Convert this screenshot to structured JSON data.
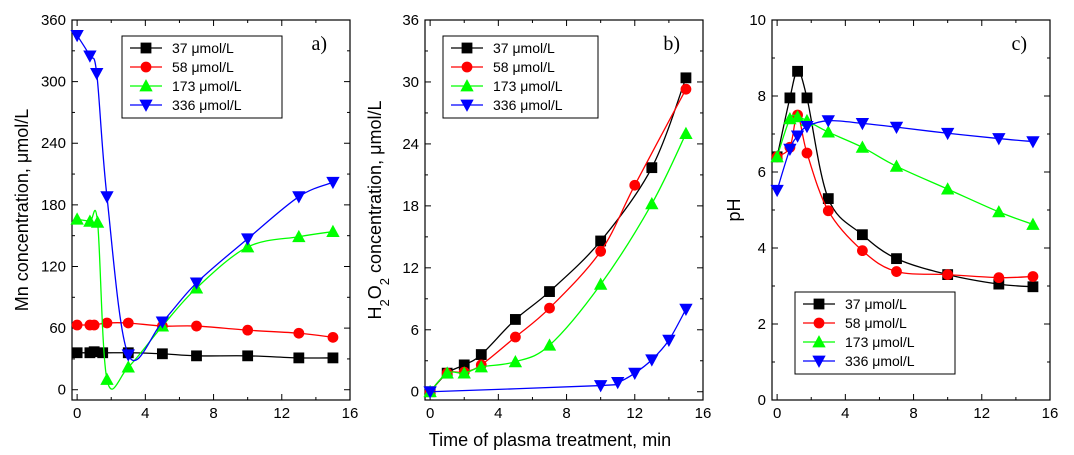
{
  "shared_xlabel": "Time of plasma treatment, min",
  "chart_data": [
    {
      "type": "line",
      "panel_label": "a)",
      "ylabel": "Mn concentration, μmol/L",
      "xlim": [
        -0.3,
        16
      ],
      "ylim": [
        -10,
        360
      ],
      "xticks": [
        0,
        4,
        8,
        12,
        16
      ],
      "yticks": [
        0,
        60,
        120,
        180,
        240,
        300,
        360
      ],
      "legend_position": "top-center",
      "series": [
        {
          "name": "37 μmol/L",
          "color": "#000000",
          "marker": "square",
          "x": [
            0,
            0.75,
            1,
            1.5,
            3,
            5,
            7,
            10,
            13,
            15
          ],
          "y": [
            36,
            36,
            37,
            36,
            36,
            35,
            33,
            33,
            31,
            31
          ]
        },
        {
          "name": "58 μmol/L",
          "color": "#ff0000",
          "marker": "circle",
          "x": [
            0,
            0.75,
            1,
            1.75,
            3,
            5,
            7,
            10,
            13,
            15
          ],
          "y": [
            63,
            63,
            63,
            65,
            65,
            62,
            62,
            58,
            55,
            51
          ]
        },
        {
          "name": "173 μmol/L",
          "color": "#00ff00",
          "marker": "triangle-up",
          "x": [
            0,
            0.75,
            1.2,
            1.75,
            3,
            5,
            7,
            10,
            13,
            15
          ],
          "y": [
            166,
            164,
            163,
            10,
            22,
            62,
            99,
            139,
            149,
            154
          ]
        },
        {
          "name": "336 μmol/L",
          "color": "#0000ff",
          "marker": "triangle-down",
          "x": [
            0,
            0.75,
            1.15,
            1.75,
            3,
            5,
            7,
            10,
            13,
            15
          ],
          "y": [
            345,
            325,
            308,
            188,
            34,
            66,
            104,
            147,
            188,
            202
          ]
        }
      ]
    },
    {
      "type": "line",
      "panel_label": "b)",
      "ylabel_main": "H",
      "ylabel_sub1": "2",
      "ylabel_mid": "O",
      "ylabel_sub2": "2",
      "ylabel_rest": " concentration, μmol/L",
      "xlim": [
        -0.3,
        16
      ],
      "ylim": [
        -0.8,
        36
      ],
      "xticks": [
        0,
        4,
        8,
        12,
        16
      ],
      "yticks": [
        0,
        6,
        12,
        18,
        24,
        30,
        36
      ],
      "legend_position": "top-left",
      "series": [
        {
          "name": "37 μmol/L",
          "color": "#000000",
          "marker": "square",
          "x": [
            0,
            1,
            2,
            3,
            5,
            7,
            10,
            13,
            15
          ],
          "y": [
            0,
            1.8,
            2.6,
            3.6,
            7,
            9.7,
            14.6,
            21.7,
            30.4
          ]
        },
        {
          "name": "58 μmol/L",
          "color": "#ff0000",
          "marker": "circle",
          "x": [
            0,
            1,
            2,
            3,
            5,
            7,
            10,
            12,
            15
          ],
          "y": [
            0,
            1.8,
            1.9,
            2.6,
            5.3,
            8.1,
            13.6,
            20,
            29.3
          ]
        },
        {
          "name": "173 μmol/L",
          "color": "#00ff00",
          "marker": "triangle-up",
          "x": [
            0,
            1,
            2,
            3,
            5,
            7,
            10,
            13,
            15
          ],
          "y": [
            0,
            1.8,
            1.8,
            2.4,
            2.9,
            4.5,
            10.4,
            18.2,
            25
          ]
        },
        {
          "name": "336 μmol/L",
          "color": "#0000ff",
          "marker": "triangle-down",
          "x": [
            0,
            10,
            11,
            12,
            13,
            14,
            15
          ],
          "y": [
            0,
            0.6,
            0.9,
            1.8,
            3.1,
            5,
            8
          ]
        }
      ]
    },
    {
      "type": "line",
      "panel_label": "c)",
      "ylabel": "pH",
      "xlim": [
        -0.3,
        16
      ],
      "ylim": [
        0,
        10
      ],
      "xticks": [
        0,
        4,
        8,
        12,
        16
      ],
      "yticks": [
        0,
        2,
        4,
        6,
        8,
        10
      ],
      "legend_position": "bottom-left",
      "series": [
        {
          "name": "37 μmol/L",
          "color": "#000000",
          "marker": "square",
          "x": [
            0,
            0.75,
            1.2,
            1.75,
            3,
            5,
            7,
            10,
            13,
            15
          ],
          "y": [
            6.4,
            7.95,
            8.65,
            7.95,
            5.3,
            4.35,
            3.72,
            3.3,
            3.05,
            2.98
          ]
        },
        {
          "name": "58 μmol/L",
          "color": "#ff0000",
          "marker": "circle",
          "x": [
            0,
            0.75,
            1.2,
            1.75,
            3,
            5,
            7,
            10,
            13,
            15
          ],
          "y": [
            6.4,
            6.65,
            7.5,
            6.5,
            4.98,
            3.93,
            3.38,
            3.3,
            3.22,
            3.25
          ]
        },
        {
          "name": "173 μmol/L",
          "color": "#00ff00",
          "marker": "triangle-up",
          "x": [
            0,
            0.75,
            1.2,
            1.75,
            3,
            5,
            7,
            10,
            13,
            15
          ],
          "y": [
            6.4,
            7.4,
            7.45,
            7.35,
            7.05,
            6.65,
            6.15,
            5.55,
            4.95,
            4.62
          ]
        },
        {
          "name": "336 μmol/L",
          "color": "#0000ff",
          "marker": "triangle-down",
          "x": [
            0,
            0.75,
            1.2,
            1.75,
            3,
            5,
            7,
            10,
            13,
            15
          ],
          "y": [
            5.52,
            6.6,
            6.95,
            7.2,
            7.35,
            7.28,
            7.18,
            7.02,
            6.88,
            6.8
          ]
        }
      ]
    }
  ]
}
